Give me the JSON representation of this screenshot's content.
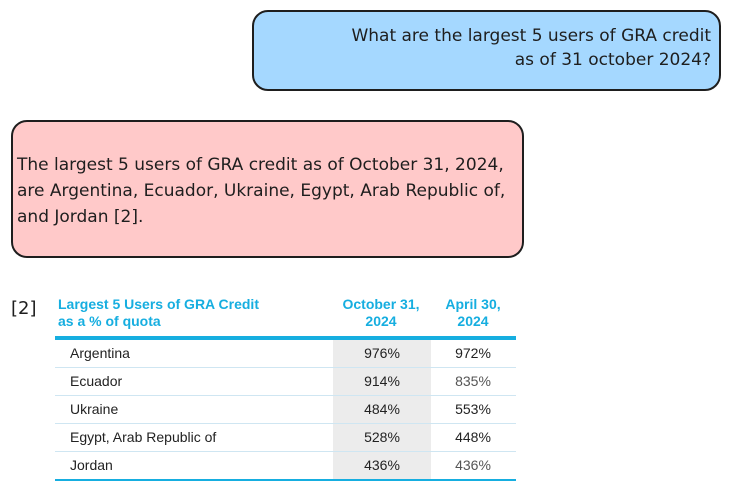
{
  "chat": {
    "user_message_line1": "What are the largest 5 users of GRA credit",
    "user_message_line2": "as of 31 october 2024?",
    "assistant_message": "The largest 5 users of GRA credit as of October 31, 2024, are Argentina, Ecuador, Ukraine, Egypt, Arab Republic of, and Jordan [2]."
  },
  "reference": {
    "label": "[2]"
  },
  "table": {
    "title_line1": "Largest 5 Users of GRA Credit",
    "title_line2": "as a % of quota",
    "col1_line1": "October 31,",
    "col1_line2": "2024",
    "col2_line1": "April 30,",
    "col2_line2": "2024",
    "rows": [
      {
        "country": "Argentina",
        "oct_2024": "976%",
        "apr_2024": "972%"
      },
      {
        "country": "Ecuador",
        "oct_2024": "914%",
        "apr_2024": "835%"
      },
      {
        "country": "Ukraine",
        "oct_2024": "484%",
        "apr_2024": "553%"
      },
      {
        "country": "Egypt, Arab Republic of",
        "oct_2024": "528%",
        "apr_2024": "448%"
      },
      {
        "country": "Jordan",
        "oct_2024": "436%",
        "apr_2024": "436%"
      }
    ]
  },
  "colors": {
    "user_bubble": "#a5d8ff",
    "assistant_bubble": "#ffc9c9",
    "table_accent": "#16aee0",
    "highlight_column": "#ececec"
  }
}
